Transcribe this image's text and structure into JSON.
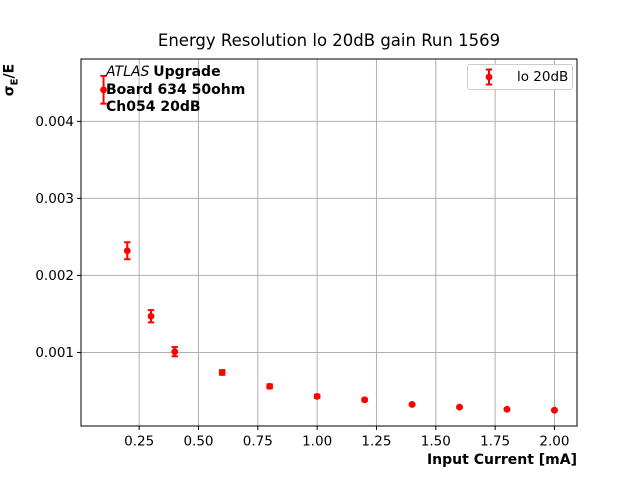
{
  "figure": {
    "title": "Energy Resolution lo 20dB gain Run 1569",
    "xlabel": "Input Current [mA]",
    "ylabel": {
      "sigma": "σ",
      "sub": "E",
      "rest": "/E"
    },
    "annotation": {
      "experiment": "ATLAS",
      "experiment_suffix": "Upgrade",
      "board": "Board 634 50ohm",
      "channel": "Ch054 20dB"
    },
    "legend": {
      "label": "lo 20dB"
    }
  },
  "colors": {
    "series": "#ff0000",
    "grid": "#b0b0b0",
    "spine": "#000000",
    "tick": "#000000",
    "text": "#000000",
    "legend_border": "#cccccc",
    "background": "#ffffff"
  },
  "chart_data": {
    "type": "scatter",
    "title": "Energy Resolution lo 20dB gain Run 1569",
    "xlabel": "Input Current [mA]",
    "ylabel": "sigma_E/E",
    "grid": true,
    "legend_position": "upper right",
    "xlim": [
      0.005,
      2.095
    ],
    "ylim": [
      4.5e-05,
      0.00481
    ],
    "xticks": {
      "values": [
        0.25,
        0.5,
        0.75,
        1.0,
        1.25,
        1.5,
        1.75,
        2.0
      ],
      "labels": [
        "0.25",
        "0.50",
        "0.75",
        "1.00",
        "1.25",
        "1.50",
        "1.75",
        "2.00"
      ]
    },
    "yticks": {
      "values": [
        0.001,
        0.002,
        0.003,
        0.004
      ],
      "labels": [
        "0.001",
        "0.002",
        "0.003",
        "0.004"
      ]
    },
    "series": [
      {
        "name": "lo 20dB",
        "marker": "circle",
        "color": "#ff0000",
        "x": [
          0.1,
          0.2,
          0.3,
          0.4,
          0.6,
          0.8,
          1.0,
          1.2,
          1.4,
          1.6,
          1.8,
          2.0
        ],
        "y": [
          0.00441,
          0.00232,
          0.00147,
          0.00101,
          0.00074,
          0.00056,
          0.00043,
          0.000385,
          0.000325,
          0.00029,
          0.000262,
          0.00025
        ],
        "yerr": [
          0.00018,
          0.00011,
          8e-05,
          6e-05,
          3e-05,
          2.5e-05,
          2e-05,
          1.5e-05,
          1.2e-05,
          1e-05,
          1e-05,
          1e-05
        ]
      }
    ]
  }
}
